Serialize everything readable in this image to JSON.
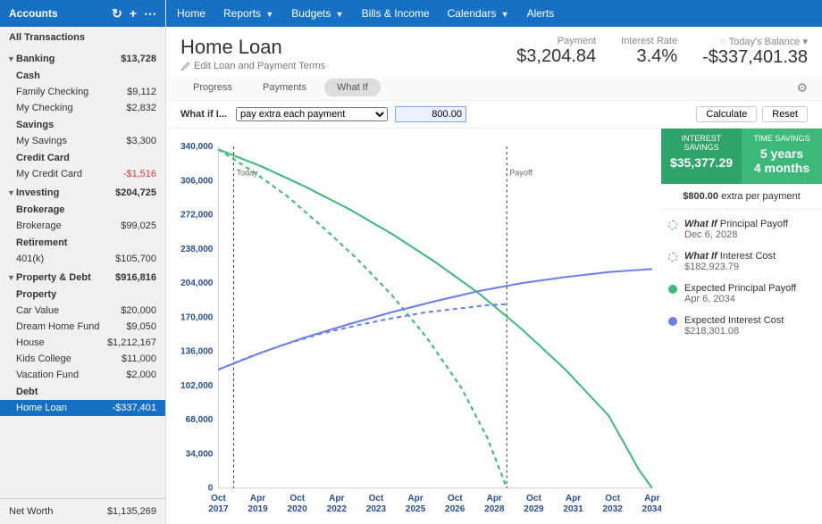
{
  "sidebar": {
    "title": "Accounts",
    "all_transactions": "All Transactions",
    "groups": [
      {
        "name": "Banking",
        "total": "$13,728",
        "sections": [
          {
            "header": "Cash",
            "items": [
              {
                "name": "Family Checking",
                "amount": "$9,112"
              },
              {
                "name": "My Checking",
                "amount": "$2,832"
              }
            ]
          },
          {
            "header": "Savings",
            "items": [
              {
                "name": "My Savings",
                "amount": "$3,300"
              }
            ]
          },
          {
            "header": "Credit Card",
            "items": [
              {
                "name": "My Credit Card",
                "amount": "-$1,516",
                "neg": true
              }
            ]
          }
        ]
      },
      {
        "name": "Investing",
        "total": "$204,725",
        "sections": [
          {
            "header": "Brokerage",
            "items": [
              {
                "name": "Brokerage",
                "amount": "$99,025"
              }
            ]
          },
          {
            "header": "Retirement",
            "items": [
              {
                "name": "401(k)",
                "amount": "$105,700"
              }
            ]
          }
        ]
      },
      {
        "name": "Property & Debt",
        "total": "$916,816",
        "sections": [
          {
            "header": "Property",
            "items": [
              {
                "name": "Car Value",
                "amount": "$20,000"
              },
              {
                "name": "Dream Home Fund",
                "amount": "$9,050"
              },
              {
                "name": "House",
                "amount": "$1,212,167"
              },
              {
                "name": "Kids College",
                "amount": "$11,000"
              },
              {
                "name": "Vacation Fund",
                "amount": "$2,000"
              }
            ]
          },
          {
            "header": "Debt",
            "items": [
              {
                "name": "Home Loan",
                "amount": "-$337,401",
                "neg": true,
                "active": true
              }
            ]
          }
        ]
      }
    ],
    "networth_label": "Net Worth",
    "networth_value": "$1,135,269"
  },
  "nav": {
    "items": [
      "Home",
      "Reports",
      "Budgets",
      "Bills & Income",
      "Calendars",
      "Alerts"
    ],
    "dropdowns": [
      false,
      true,
      true,
      false,
      true,
      false
    ]
  },
  "page": {
    "title": "Home Loan",
    "edit": "Edit Loan and Payment Terms",
    "stats": [
      {
        "label": "Payment",
        "value": "$3,204.84"
      },
      {
        "label": "Interest Rate",
        "value": "3.4%"
      },
      {
        "label": "Today's Balance",
        "value": "-$337,401.38",
        "pending_icon": true,
        "dropdown": true
      }
    ]
  },
  "tabs": [
    "Progress",
    "Payments",
    "What If"
  ],
  "active_tab": 2,
  "whatif": {
    "label": "What if I...",
    "option": "pay extra each payment",
    "amount": "800.00",
    "calc": "Calculate",
    "reset": "Reset"
  },
  "savings": {
    "interest_label": "INTEREST SAVINGS",
    "interest_value": "$35,377.29",
    "time_label": "TIME SAVINGS",
    "time_value_l1": "5 years",
    "time_value_l2": "4 months",
    "extra_bold": "$800.00",
    "extra_rest": " extra per payment"
  },
  "legend": [
    {
      "title": "What If Principal Payoff",
      "sub": "Dec 6, 2028",
      "color": "#3cb878",
      "dashed": true,
      "italic": true
    },
    {
      "title": "What If Interest Cost",
      "sub": "$182,923.79",
      "color": "#6b7fe8",
      "dashed": true,
      "italic": true
    },
    {
      "title": "Expected Principal Payoff",
      "sub": "Apr 6, 2034",
      "color": "#3cb878",
      "dashed": false
    },
    {
      "title": "Expected Interest Cost",
      "sub": "$218,301.08",
      "color": "#6b7fe8",
      "dashed": false
    }
  ],
  "chart": {
    "colors": {
      "principal": "#3cb878",
      "interest": "#6b7fe8",
      "axis": "#2a4d8f",
      "grid": "#e8e8e8"
    },
    "y_ticks": [
      "0",
      "34,000",
      "68,000",
      "102,000",
      "136,000",
      "170,000",
      "204,000",
      "238,000",
      "272,000",
      "306,000",
      "340,000"
    ],
    "x_ticks": [
      "Oct\n2017",
      "Apr\n2019",
      "Oct\n2020",
      "Apr\n2022",
      "Oct\n2023",
      "Apr\n2025",
      "Oct\n2026",
      "Apr\n2028",
      "Oct\n2029",
      "Apr\n2031",
      "Oct\n2032",
      "Apr\n2034"
    ],
    "today_label": "Today",
    "payoff_label": "Payoff",
    "today_x": 0.035,
    "payoff_x": 0.665,
    "y_max": 340000,
    "principal_solid": [
      [
        0,
        337000
      ],
      [
        0.1,
        320000
      ],
      [
        0.2,
        300000
      ],
      [
        0.3,
        278000
      ],
      [
        0.4,
        253000
      ],
      [
        0.5,
        225000
      ],
      [
        0.6,
        194000
      ],
      [
        0.7,
        158000
      ],
      [
        0.8,
        118000
      ],
      [
        0.9,
        72000
      ],
      [
        0.97,
        18000
      ],
      [
        1.0,
        0
      ]
    ],
    "principal_dashed": [
      [
        0,
        337000
      ],
      [
        0.08,
        315000
      ],
      [
        0.16,
        290000
      ],
      [
        0.24,
        260000
      ],
      [
        0.32,
        228000
      ],
      [
        0.4,
        192000
      ],
      [
        0.48,
        150000
      ],
      [
        0.56,
        100000
      ],
      [
        0.62,
        50000
      ],
      [
        0.665,
        0
      ]
    ],
    "interest_solid": [
      [
        0,
        118000
      ],
      [
        0.1,
        135000
      ],
      [
        0.2,
        150000
      ],
      [
        0.3,
        163000
      ],
      [
        0.4,
        175000
      ],
      [
        0.5,
        186000
      ],
      [
        0.6,
        196000
      ],
      [
        0.7,
        204000
      ],
      [
        0.8,
        210000
      ],
      [
        0.9,
        215000
      ],
      [
        1.0,
        218000
      ]
    ],
    "interest_dashed": [
      [
        0,
        118000
      ],
      [
        0.08,
        132000
      ],
      [
        0.16,
        144000
      ],
      [
        0.24,
        154000
      ],
      [
        0.32,
        162000
      ],
      [
        0.4,
        169000
      ],
      [
        0.48,
        175000
      ],
      [
        0.56,
        179000
      ],
      [
        0.62,
        182000
      ],
      [
        0.665,
        183000
      ]
    ]
  }
}
